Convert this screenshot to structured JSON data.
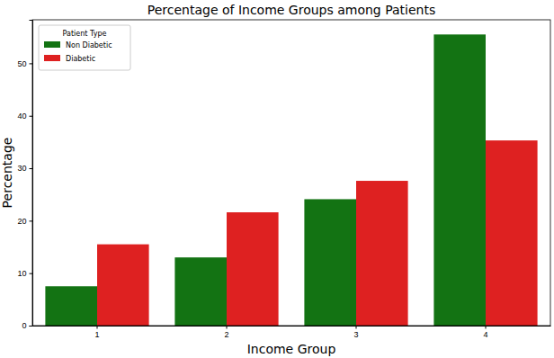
{
  "chart_data": {
    "type": "bar",
    "title": "Percentage of Income Groups among Patients",
    "x_label": "Income Group",
    "y_label": "Percentage",
    "categories": [
      "1",
      "2",
      "3",
      "4"
    ],
    "series": [
      {
        "name": "Non Diabetic",
        "color": "#137313",
        "values": [
          7.5,
          13.0,
          24.1,
          55.5
        ]
      },
      {
        "name": "Diabetic",
        "color": "#de2121",
        "values": [
          15.5,
          21.6,
          27.6,
          35.3
        ]
      }
    ],
    "legend_title": "Patient Type",
    "legend": "upper left",
    "ylim": [
      0,
      58.3
    ],
    "yticks": [
      0,
      10,
      20,
      30,
      40,
      50
    ],
    "grid": false
  }
}
